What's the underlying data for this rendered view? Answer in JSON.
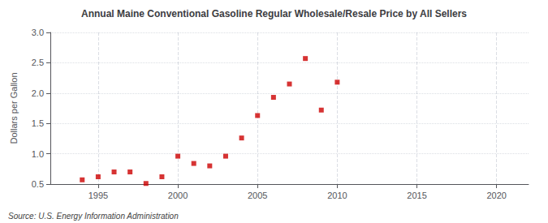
{
  "chart_data": {
    "type": "scatter",
    "title": "Annual Maine Conventional Gasoline Regular Wholesale/Resale Price by All Sellers",
    "ylabel": "Dollars per Gallon",
    "annotation": "Source: U.S. Energy Information Administration",
    "x": [
      1994,
      1995,
      1996,
      1997,
      1998,
      1999,
      2000,
      2001,
      2002,
      2003,
      2004,
      2005,
      2006,
      2007,
      2008,
      2009,
      2010
    ],
    "values": [
      0.57,
      0.62,
      0.7,
      0.7,
      0.51,
      0.62,
      0.96,
      0.84,
      0.8,
      0.96,
      1.26,
      1.63,
      1.93,
      2.15,
      2.57,
      1.72,
      2.18
    ],
    "color": "#cc0000",
    "marker": "square",
    "xlim": [
      1992,
      2022
    ],
    "ylim": [
      0.5,
      3.0
    ],
    "xticks": [
      1995,
      2000,
      2005,
      2010,
      2015,
      2020
    ],
    "yticks": [
      0.5,
      {
        "value": 1,
        "label": "1.0"
      },
      1.5,
      {
        "value": 2,
        "label": "2.0"
      },
      2.5,
      {
        "value": 3,
        "label": "3.0"
      }
    ],
    "grid": true
  }
}
